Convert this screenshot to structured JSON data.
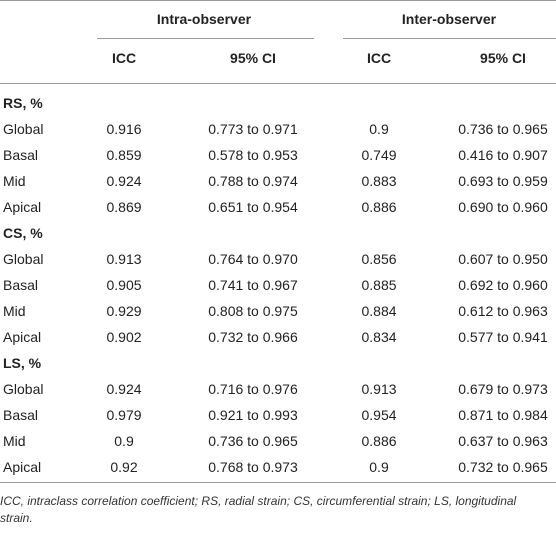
{
  "table": {
    "header": {
      "group1": "Intra-observer",
      "group2": "Inter-observer",
      "col_icc": "ICC",
      "col_ci": "95% CI"
    },
    "sections": [
      {
        "title": "RS, %",
        "rows": [
          {
            "label": "Global",
            "intra_icc": "0.916",
            "intra_ci": "0.773 to 0.971",
            "inter_icc": "0.9",
            "inter_ci": "0.736 to 0.965"
          },
          {
            "label": "Basal",
            "intra_icc": "0.859",
            "intra_ci": "0.578 to 0.953",
            "inter_icc": "0.749",
            "inter_ci": "0.416 to 0.907"
          },
          {
            "label": "Mid",
            "intra_icc": "0.924",
            "intra_ci": "0.788 to 0.974",
            "inter_icc": "0.883",
            "inter_ci": "0.693 to 0.959"
          },
          {
            "label": "Apical",
            "intra_icc": "0.869",
            "intra_ci": "0.651 to 0.954",
            "inter_icc": "0.886",
            "inter_ci": "0.690 to 0.960"
          }
        ]
      },
      {
        "title": "CS, %",
        "rows": [
          {
            "label": "Global",
            "intra_icc": "0.913",
            "intra_ci": "0.764 to 0.970",
            "inter_icc": "0.856",
            "inter_ci": "0.607 to 0.950"
          },
          {
            "label": "Basal",
            "intra_icc": "0.905",
            "intra_ci": "0.741 to 0.967",
            "inter_icc": "0.885",
            "inter_ci": "0.692 to 0.960"
          },
          {
            "label": "Mid",
            "intra_icc": "0.929",
            "intra_ci": "0.808 to 0.975",
            "inter_icc": "0.884",
            "inter_ci": "0.612 to 0.963"
          },
          {
            "label": "Apical",
            "intra_icc": "0.902",
            "intra_ci": "0.732 to 0.966",
            "inter_icc": "0.834",
            "inter_ci": "0.577 to 0.941"
          }
        ]
      },
      {
        "title": "LS, %",
        "rows": [
          {
            "label": "Global",
            "intra_icc": "0.924",
            "intra_ci": "0.716 to 0.976",
            "inter_icc": "0.913",
            "inter_ci": "0.679 to 0.973"
          },
          {
            "label": "Basal",
            "intra_icc": "0.979",
            "intra_ci": "0.921 to 0.993",
            "inter_icc": "0.954",
            "inter_ci": "0.871 to 0.984"
          },
          {
            "label": "Mid",
            "intra_icc": "0.9",
            "intra_ci": "0.736 to 0.965",
            "inter_icc": "0.886",
            "inter_ci": "0.637 to 0.963"
          },
          {
            "label": "Apical",
            "intra_icc": "0.92",
            "intra_ci": "0.768 to 0.973",
            "inter_icc": "0.9",
            "inter_ci": "0.732 to 0.965"
          }
        ]
      }
    ]
  },
  "footnote": "ICC, intraclass correlation coefficient; RS, radial strain; CS, circumferential strain; LS, longitudinal strain."
}
